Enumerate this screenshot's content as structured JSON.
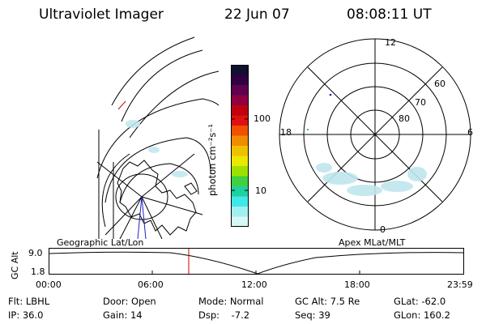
{
  "header": {
    "instrument": "Ultraviolet Imager",
    "date": "22 Jun 07",
    "time": "08:08:11 UT"
  },
  "colorbar": {
    "unit_label": "photon cm⁻²s⁻¹",
    "ticks": [
      "100",
      "10"
    ],
    "colors": [
      "#101030",
      "#300040",
      "#600050",
      "#900040",
      "#c00010",
      "#e01010",
      "#f05000",
      "#f08c00",
      "#f0c000",
      "#e8e800",
      "#a0e000",
      "#40d040",
      "#20d0a0",
      "#40e8e8",
      "#a0f0f0",
      "#d8f8f8"
    ]
  },
  "polar_plot": {
    "mlt_labels": {
      "top": "12",
      "left": "18",
      "right": "6",
      "bottom": "0"
    },
    "lat_labels": [
      "60",
      "70",
      "80"
    ]
  },
  "timeline": {
    "left_title": "Geographic Lat/Lon",
    "right_title": "Apex MLat/MLT",
    "y_axis_label": "GC Alt",
    "y_ticks": [
      "9.0",
      "1.8"
    ],
    "x_ticks": [
      "00:00",
      "06:00",
      "12:00",
      "18:00",
      "23:59"
    ],
    "current_time_marker": "08:08"
  },
  "info": {
    "flt": "Flt: LBHL",
    "ip": "IP: 36.0",
    "door": "Door: Open",
    "gain": "Gain: 14",
    "mode": "Mode: Normal",
    "dsp": "Dsp:    -7.2",
    "gcalt": "GC Alt: 7.5 Re",
    "seq": "Seq: 39",
    "glat": "GLat: -62.0",
    "glon": "GLon: 160.2"
  },
  "colors": {
    "marker": "#cc0000",
    "accent_blue": "#2020c0",
    "aurora": "#bfe6ee"
  }
}
